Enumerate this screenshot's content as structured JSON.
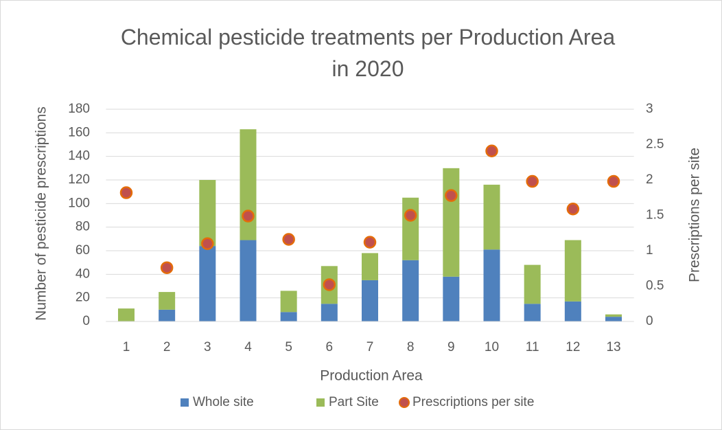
{
  "chart_data": {
    "type": "bar",
    "stacked": true,
    "title": "Chemical pesticide treatments per Production Area in 2020",
    "xlabel": "Production Area",
    "ylabel": "Number of pesticide prescriptions",
    "y2label": "Prescriptions per site",
    "categories": [
      "1",
      "2",
      "3",
      "4",
      "5",
      "6",
      "7",
      "8",
      "9",
      "10",
      "11",
      "12",
      "13"
    ],
    "series": [
      {
        "name": "Whole site",
        "type": "bar",
        "color": "#4f81bd",
        "values": [
          0,
          10,
          64,
          69,
          8,
          15,
          35,
          52,
          38,
          61,
          15,
          17,
          4
        ]
      },
      {
        "name": "Part Site",
        "type": "bar",
        "color": "#9bbb59",
        "values": [
          11,
          15,
          56,
          94,
          18,
          32,
          23,
          53,
          92,
          55,
          33,
          52,
          2
        ]
      },
      {
        "name": "Prescriptions per site",
        "type": "scatter",
        "axis": "y2",
        "color": "#c0504d",
        "edgecolor": "#e46c0a",
        "values": [
          1.82,
          0.76,
          1.1,
          1.49,
          1.16,
          0.52,
          1.12,
          1.5,
          1.78,
          2.41,
          1.98,
          1.59,
          1.98
        ]
      }
    ],
    "ylim": [
      0,
      180
    ],
    "yticks": [
      0,
      20,
      40,
      60,
      80,
      100,
      120,
      140,
      160,
      180
    ],
    "y2lim": [
      0,
      3
    ],
    "y2ticks": [
      0,
      0.5,
      1,
      1.5,
      2,
      2.5,
      3
    ],
    "grid": true,
    "legend": "bottom"
  }
}
